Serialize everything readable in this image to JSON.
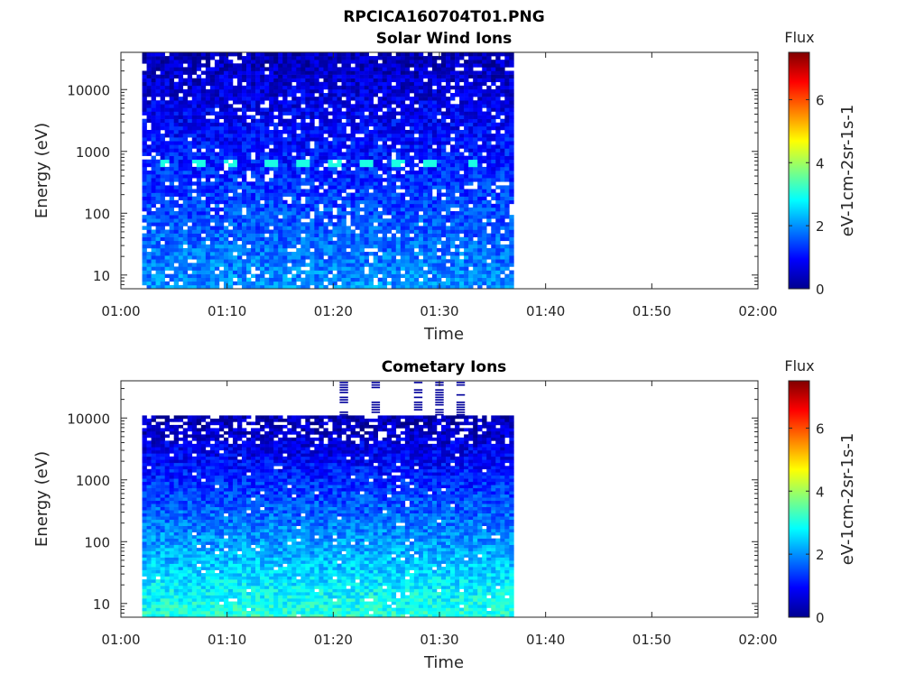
{
  "figure": {
    "title": "RPCICA160704T01.PNG"
  },
  "chart_data": [
    {
      "type": "heatmap",
      "title": "Solar Wind Ions",
      "xlabel": "Time",
      "ylabel": "Energy (eV)",
      "x_ticks": [
        "01:00",
        "01:10",
        "01:20",
        "01:30",
        "01:40",
        "01:50",
        "02:00"
      ],
      "xlim": [
        "01:00",
        "02:00"
      ],
      "y_ticks": [
        10,
        100,
        1000,
        10000
      ],
      "y_tick_labels": [
        "10",
        "100",
        "1000",
        "10000"
      ],
      "y_scale": "log",
      "ylim": [
        6,
        40000
      ],
      "data_time_range": [
        "01:02",
        "01:37"
      ],
      "energy_range_ev": [
        6,
        40000
      ],
      "colorbar": {
        "title": "Flux",
        "label": "eV-1cm-2sr-1s-1",
        "range": [
          0,
          7.5
        ],
        "ticks": [
          0,
          2,
          4,
          6
        ]
      },
      "features": [
        {
          "description": "periodic bright band",
          "energy_ev": 600,
          "value": 3,
          "times": [
            "01:04",
            "01:07",
            "01:10",
            "01:14",
            "01:17",
            "01:20",
            "01:23",
            "01:26",
            "01:29",
            "01:33"
          ]
        }
      ]
    },
    {
      "type": "heatmap",
      "title": "Cometary Ions",
      "xlabel": "Time",
      "ylabel": "Energy (eV)",
      "x_ticks": [
        "01:00",
        "01:10",
        "01:20",
        "01:30",
        "01:40",
        "01:50",
        "02:00"
      ],
      "xlim": [
        "01:00",
        "02:00"
      ],
      "y_ticks": [
        10,
        100,
        1000,
        10000
      ],
      "y_tick_labels": [
        "10",
        "100",
        "1000",
        "10000"
      ],
      "y_scale": "log",
      "ylim": [
        6,
        40000
      ],
      "data_time_range": [
        "01:02",
        "01:37"
      ],
      "energy_range_ev": [
        6,
        11000
      ],
      "colorbar": {
        "title": "Flux",
        "label": "eV-1cm-2sr-1s-1",
        "range": [
          0,
          7.5
        ],
        "ticks": [
          0,
          2,
          4,
          6
        ]
      },
      "features": [
        {
          "description": "high energy bursts",
          "energy_range_ev": [
            11000,
            40000
          ],
          "value": 0.2,
          "times": [
            "01:21",
            "01:24",
            "01:28",
            "01:30",
            "01:32"
          ]
        }
      ]
    }
  ]
}
